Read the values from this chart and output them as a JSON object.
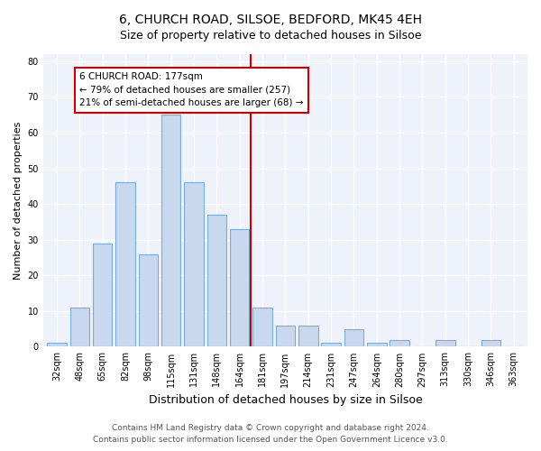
{
  "title1": "6, CHURCH ROAD, SILSOE, BEDFORD, MK45 4EH",
  "title2": "Size of property relative to detached houses in Silsoe",
  "xlabel": "Distribution of detached houses by size in Silsoe",
  "ylabel": "Number of detached properties",
  "categories": [
    "32sqm",
    "48sqm",
    "65sqm",
    "82sqm",
    "98sqm",
    "115sqm",
    "131sqm",
    "148sqm",
    "164sqm",
    "181sqm",
    "197sqm",
    "214sqm",
    "231sqm",
    "247sqm",
    "264sqm",
    "280sqm",
    "297sqm",
    "313sqm",
    "330sqm",
    "346sqm",
    "363sqm"
  ],
  "values": [
    1,
    11,
    29,
    46,
    26,
    65,
    46,
    37,
    33,
    11,
    6,
    6,
    1,
    5,
    1,
    2,
    0,
    2,
    0,
    2,
    0
  ],
  "bar_color": "#c8d8ee",
  "bar_edge_color": "#7aaed6",
  "vline_x_index": 8,
  "annotation_line1": "6 CHURCH ROAD: 177sqm",
  "annotation_line2": "← 79% of detached houses are smaller (257)",
  "annotation_line3": "21% of semi-detached houses are larger (68) →",
  "annotation_box_color": "#ffffff",
  "annotation_box_edge": "#cc0000",
  "vline_color": "#cc0000",
  "ylim": [
    0,
    82
  ],
  "yticks": [
    0,
    10,
    20,
    30,
    40,
    50,
    60,
    70,
    80
  ],
  "footer1": "Contains HM Land Registry data © Crown copyright and database right 2024.",
  "footer2": "Contains public sector information licensed under the Open Government Licence v3.0.",
  "bg_color": "#ffffff",
  "plot_bg_color": "#eef2fa",
  "title1_fontsize": 10,
  "title2_fontsize": 9,
  "xlabel_fontsize": 9,
  "ylabel_fontsize": 8,
  "tick_fontsize": 7,
  "footer_fontsize": 6.5,
  "annotation_fontsize": 7.5
}
